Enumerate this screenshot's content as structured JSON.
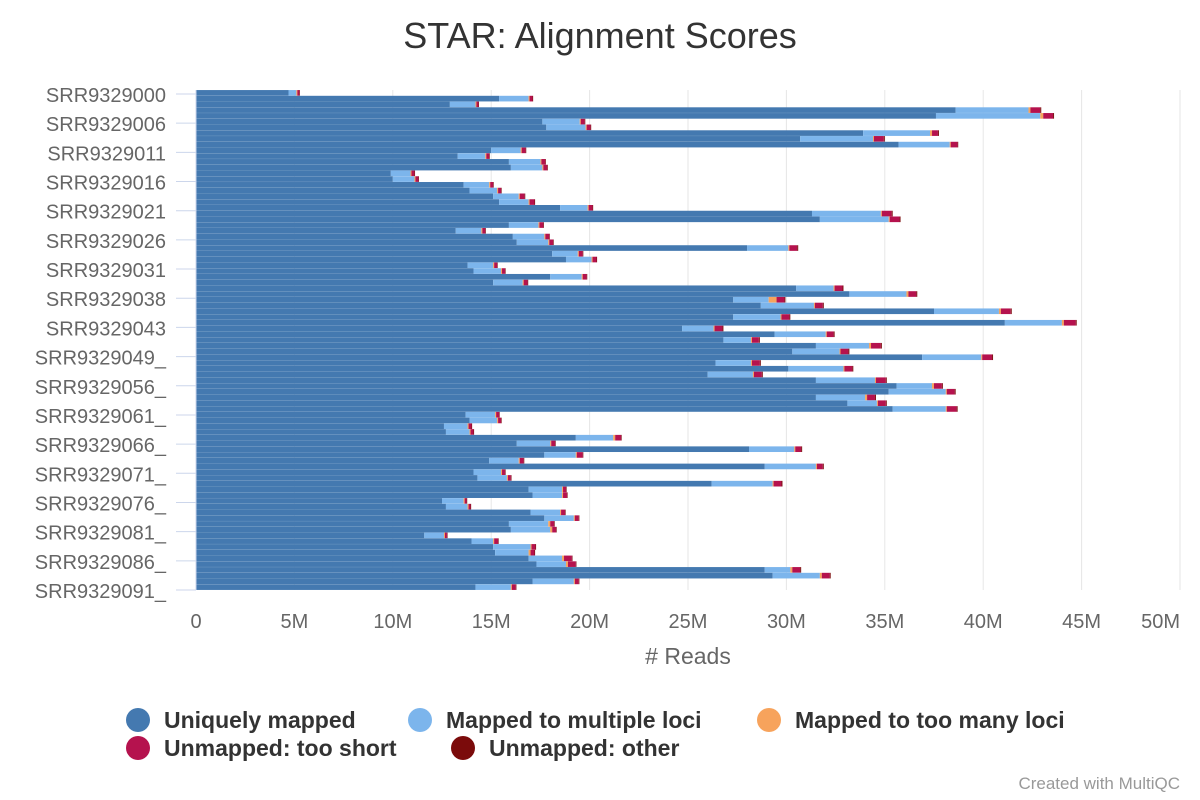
{
  "credit": "Created with MultiQC",
  "chart_data": {
    "type": "bar",
    "orientation": "horizontal",
    "stacked": true,
    "title": "STAR: Alignment Scores",
    "xlabel": "# Reads",
    "ylabel": "",
    "xlim": [
      0,
      50
    ],
    "x_unit": "M",
    "x_ticks": [
      "0",
      "5M",
      "10M",
      "15M",
      "20M",
      "25M",
      "30M",
      "35M",
      "40M",
      "45M",
      "50M"
    ],
    "grid": true,
    "legend_position": "bottom",
    "category_labels": [
      "SRR9329000",
      "SRR9329006",
      "SRR9329011",
      "SRR9329016",
      "SRR9329021",
      "SRR9329026",
      "SRR9329031",
      "SRR9329038",
      "SRR9329043",
      "SRR9329049_",
      "SRR9329056_",
      "SRR9329061_",
      "SRR9329066_",
      "SRR9329071_",
      "SRR9329076_",
      "SRR9329081_",
      "SRR9329086_",
      "SRR9329091_"
    ],
    "series_colors": [
      "#4479b0",
      "#7cb5ec",
      "#f7a35c",
      "#b5124e",
      "#7b0b0b"
    ],
    "series": [
      {
        "name": "Uniquely mapped",
        "color": "#4479b0",
        "values": [
          4.7,
          15.4,
          12.9,
          38.6,
          37.6,
          17.6,
          17.8,
          33.9,
          30.7,
          35.7,
          15.0,
          13.3,
          15.9,
          16.0,
          9.9,
          10.0,
          13.6,
          13.9,
          15.1,
          15.4,
          18.5,
          31.3,
          31.7,
          15.9,
          13.2,
          16.1,
          16.3,
          28.0,
          18.1,
          18.8,
          13.8,
          14.1,
          18.0,
          15.1,
          30.5,
          33.2,
          27.3,
          28.7,
          37.5,
          27.3,
          41.1,
          24.7,
          29.4,
          26.8,
          31.5,
          30.3,
          36.9,
          26.4,
          30.1,
          26.0,
          31.5,
          35.6,
          35.2,
          31.5,
          33.1,
          35.4,
          13.7,
          13.9,
          12.6,
          12.7,
          19.3,
          16.3,
          28.1,
          17.7,
          14.9,
          28.9,
          14.1,
          14.3,
          26.2,
          16.9,
          17.1,
          12.5,
          12.7,
          17.0,
          17.7,
          15.9,
          16.0,
          11.6,
          14.0,
          15.1,
          15.2,
          16.9,
          17.3,
          28.9,
          29.3,
          17.1,
          14.2
        ]
      },
      {
        "name": "Mapped to multiple loci",
        "color": "#7cb5ec",
        "values": [
          0.4,
          1.5,
          1.3,
          3.7,
          5.3,
          1.9,
          2.0,
          3.4,
          3.7,
          2.6,
          1.5,
          1.4,
          1.6,
          1.6,
          1.0,
          1.1,
          1.3,
          1.4,
          1.3,
          1.5,
          1.4,
          3.5,
          3.5,
          1.5,
          1.3,
          1.6,
          1.6,
          2.1,
          1.3,
          1.3,
          1.3,
          1.4,
          1.6,
          1.5,
          1.9,
          2.9,
          1.8,
          2.7,
          3.3,
          2.4,
          2.9,
          1.6,
          2.6,
          1.4,
          2.7,
          2.4,
          3.0,
          1.8,
          2.8,
          2.3,
          3.0,
          1.8,
          2.9,
          2.5,
          1.5,
          2.7,
          1.5,
          1.4,
          1.2,
          1.2,
          1.9,
          1.7,
          2.3,
          1.6,
          1.5,
          2.6,
          1.4,
          1.5,
          3.1,
          1.7,
          1.5,
          1.1,
          1.1,
          1.5,
          1.5,
          2.0,
          2.0,
          1.0,
          1.1,
          1.9,
          1.7,
          1.7,
          1.5,
          1.3,
          2.4,
          2.1,
          1.8
        ]
      },
      {
        "name": "Mapped to too many loci",
        "color": "#f7a35c",
        "values": [
          0.05,
          0.05,
          0.05,
          0.1,
          0.15,
          0.05,
          0.05,
          0.1,
          0.05,
          0.05,
          0.05,
          0.05,
          0.05,
          0.05,
          0.05,
          0.05,
          0.05,
          0.05,
          0.05,
          0.05,
          0.05,
          0.05,
          0.05,
          0.05,
          0.05,
          0.05,
          0.05,
          0.05,
          0.05,
          0.05,
          0.05,
          0.05,
          0.05,
          0.05,
          0.05,
          0.1,
          0.4,
          0.05,
          0.1,
          0.05,
          0.1,
          0.05,
          0.05,
          0.05,
          0.1,
          0.05,
          0.05,
          0.05,
          0.05,
          0.05,
          0.05,
          0.1,
          0.05,
          0.1,
          0.05,
          0.05,
          0.05,
          0.05,
          0.05,
          0.05,
          0.1,
          0.05,
          0.05,
          0.05,
          0.05,
          0.05,
          0.05,
          0.05,
          0.05,
          0.05,
          0.05,
          0.05,
          0.05,
          0.05,
          0.05,
          0.1,
          0.1,
          0.05,
          0.05,
          0.05,
          0.1,
          0.1,
          0.1,
          0.1,
          0.1,
          0.05,
          0.05
        ]
      },
      {
        "name": "Unmapped: too short",
        "color": "#b5124e",
        "values": [
          0.1,
          0.15,
          0.1,
          0.5,
          0.5,
          0.2,
          0.2,
          0.3,
          0.5,
          0.35,
          0.2,
          0.15,
          0.2,
          0.2,
          0.15,
          0.15,
          0.15,
          0.15,
          0.25,
          0.25,
          0.2,
          0.5,
          0.5,
          0.2,
          0.15,
          0.2,
          0.2,
          0.4,
          0.2,
          0.2,
          0.15,
          0.15,
          0.2,
          0.2,
          0.4,
          0.4,
          0.4,
          0.4,
          0.5,
          0.4,
          0.6,
          0.4,
          0.35,
          0.35,
          0.5,
          0.4,
          0.5,
          0.4,
          0.4,
          0.4,
          0.5,
          0.4,
          0.4,
          0.4,
          0.4,
          0.5,
          0.15,
          0.15,
          0.15,
          0.15,
          0.3,
          0.2,
          0.3,
          0.3,
          0.2,
          0.3,
          0.15,
          0.15,
          0.4,
          0.15,
          0.2,
          0.1,
          0.1,
          0.2,
          0.2,
          0.2,
          0.2,
          0.1,
          0.2,
          0.2,
          0.2,
          0.4,
          0.4,
          0.4,
          0.4,
          0.2,
          0.2
        ]
      },
      {
        "name": "Unmapped: other",
        "color": "#7b0b0b",
        "values": [
          0.02,
          0.02,
          0.02,
          0.05,
          0.05,
          0.02,
          0.02,
          0.05,
          0.05,
          0.02,
          0.02,
          0.02,
          0.02,
          0.02,
          0.02,
          0.02,
          0.02,
          0.02,
          0.02,
          0.02,
          0.02,
          0.05,
          0.05,
          0.02,
          0.02,
          0.02,
          0.02,
          0.05,
          0.02,
          0.02,
          0.02,
          0.02,
          0.02,
          0.02,
          0.05,
          0.05,
          0.05,
          0.05,
          0.05,
          0.05,
          0.05,
          0.05,
          0.05,
          0.05,
          0.05,
          0.05,
          0.05,
          0.05,
          0.05,
          0.05,
          0.05,
          0.05,
          0.05,
          0.05,
          0.05,
          0.05,
          0.02,
          0.02,
          0.02,
          0.02,
          0.02,
          0.02,
          0.05,
          0.02,
          0.02,
          0.05,
          0.02,
          0.02,
          0.05,
          0.02,
          0.02,
          0.02,
          0.02,
          0.02,
          0.02,
          0.02,
          0.02,
          0.02,
          0.02,
          0.02,
          0.02,
          0.02,
          0.02,
          0.05,
          0.05,
          0.02,
          0.02
        ]
      }
    ]
  }
}
